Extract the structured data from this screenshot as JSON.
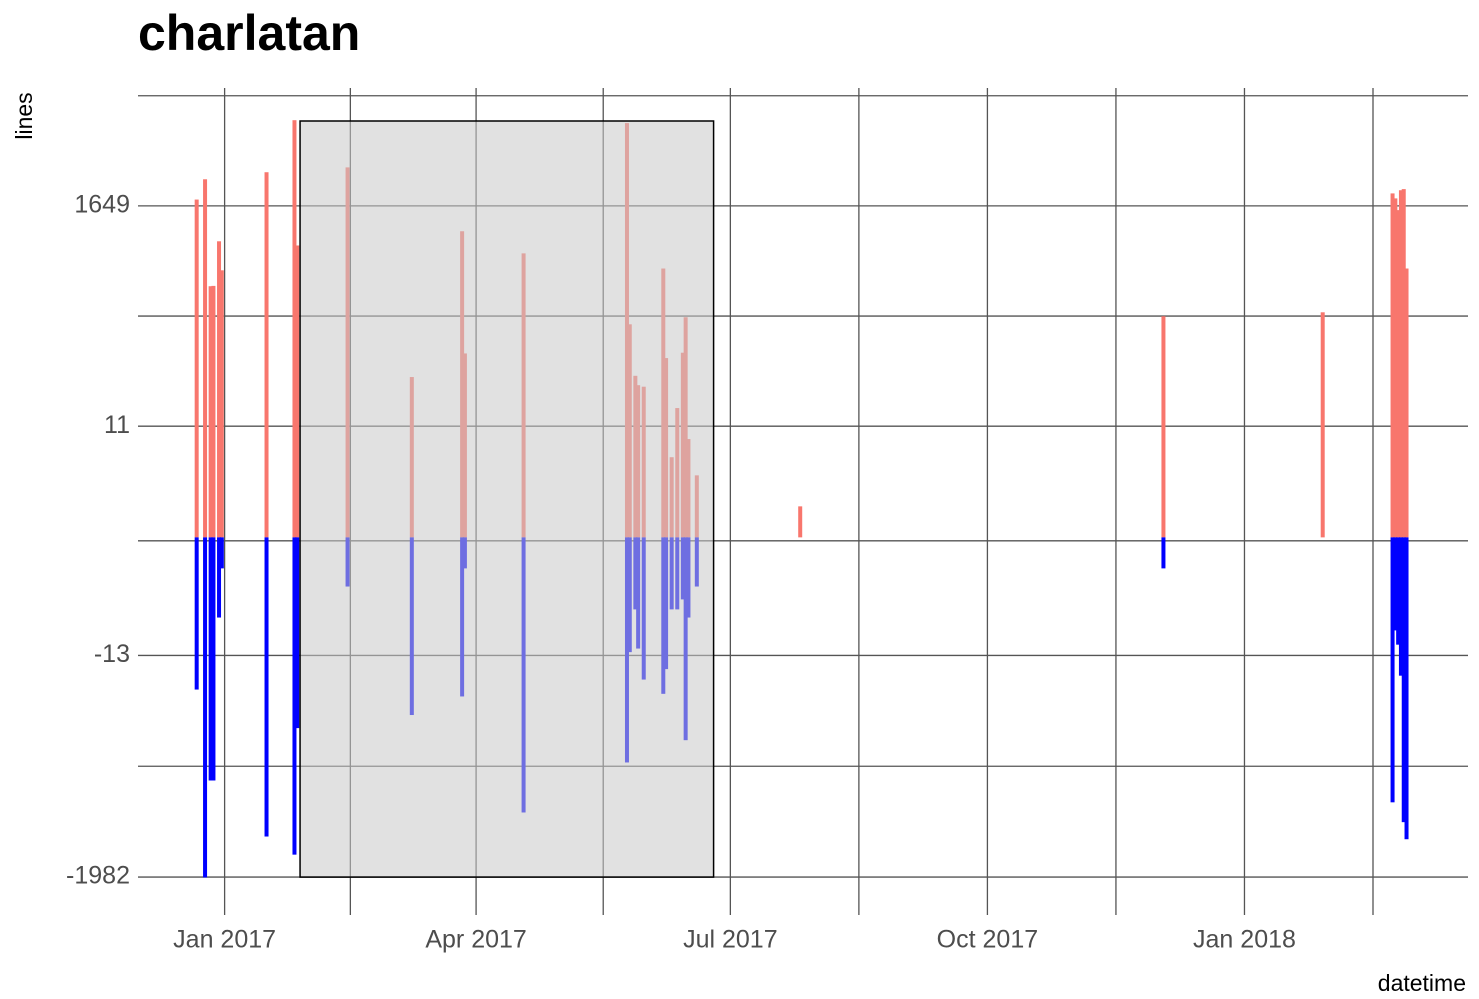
{
  "chart_data": {
    "type": "bar",
    "title": "charlatan",
    "x_label": "datetime",
    "y_label": "lines",
    "y_scale": "pseudo_log",
    "grid": true,
    "xlim": [
      "2016-12-01",
      "2018-03-22"
    ],
    "xticks": [
      {
        "value": "2017-01-01",
        "label": "Jan 2017"
      },
      {
        "value": "2017-04-01",
        "label": "Apr 2017"
      },
      {
        "value": "2017-07-01",
        "label": "Jul 2017"
      },
      {
        "value": "2017-10-01",
        "label": "Oct 2017"
      },
      {
        "value": "2018-01-01",
        "label": "Jan 2018"
      }
    ],
    "ylim": [
      -3700,
      23000
    ],
    "yticks": [
      -1982,
      -13,
      11,
      1649
    ],
    "x": [
      "2016-12-22",
      "2016-12-25",
      "2016-12-27",
      "2016-12-28",
      "2016-12-30",
      "2016-12-31",
      "2017-01-16",
      "2017-01-26",
      "2017-01-27",
      "2017-02-14",
      "2017-03-09",
      "2017-03-27",
      "2017-03-28",
      "2017-04-18",
      "2017-05-25",
      "2017-05-26",
      "2017-05-28",
      "2017-05-29",
      "2017-05-31",
      "2017-06-07",
      "2017-06-08",
      "2017-06-10",
      "2017-06-12",
      "2017-06-14",
      "2017-06-15",
      "2017-06-16",
      "2017-06-19",
      "2017-07-26",
      "2017-12-03",
      "2018-01-29",
      "2018-02-23",
      "2018-02-24",
      "2018-02-25",
      "2018-02-26",
      "2018-02-27",
      "2018-02-28"
    ],
    "series": [
      {
        "color": "#f8766d",
        "values": [
          1900,
          2990,
          273,
          275,
          747,
          390,
          3500,
          11200,
          680,
          3900,
          35,
          935,
          60,
          570,
          10500,
          116,
          36,
          29,
          28,
          406,
          54,
          5,
          17,
          61,
          136,
          8,
          3,
          1,
          139,
          152,
          2180,
          1950,
          1500,
          2340,
          2400,
          406
        ]
      },
      {
        "color": "#0000ff",
        "values": [
          -29,
          -2000,
          -228,
          -228,
          -5,
          -1,
          -800,
          -1200,
          -70,
          -2,
          -52,
          -34,
          -1,
          -467,
          -152,
          -12,
          -4,
          -11,
          -23,
          -32,
          -18,
          -4,
          -4,
          -3,
          -92,
          -5,
          -2,
          0,
          -1,
          0,
          -372,
          -7,
          -10,
          -21,
          -580,
          -850
        ]
      }
    ],
    "highlight": {
      "x": [
        "2017-01-28",
        "2017-06-25"
      ],
      "y": [
        -1982,
        11000
      ],
      "color": "#c8c8c8",
      "opacity": 0.55
    }
  }
}
